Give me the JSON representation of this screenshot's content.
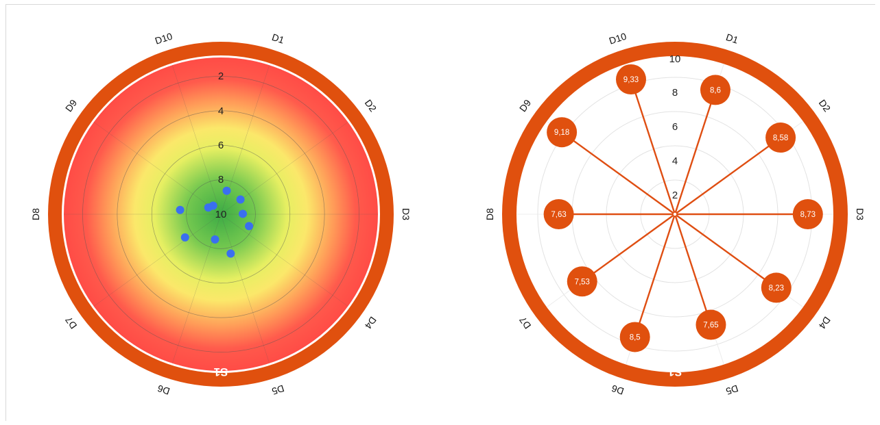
{
  "colors": {
    "ring": "#e0500e",
    "dot": "#3a6ff0",
    "spoke": "#df4e12",
    "heat_center": "#4cb848",
    "heat_mid": "#f4f36a",
    "heat_edge": "#ff4a45",
    "grid": "#555555"
  },
  "chart_data": [
    {
      "type": "scatter",
      "subtype": "polar-target",
      "ring_label": "S1",
      "axes": [
        "D10",
        "D1",
        "D2",
        "D3",
        "D4",
        "D5",
        "D6",
        "D7",
        "D8",
        "D9"
      ],
      "r_ticks": [
        "2",
        "4",
        "6",
        "8",
        "10"
      ],
      "r_range": [
        10,
        0
      ],
      "grid": true,
      "background": "radial heatmap green center to red edge",
      "points": [
        {
          "value": 8.6,
          "angle_deg": 14
        },
        {
          "value": 8.58,
          "angle_deg": 53
        },
        {
          "value": 8.73,
          "angle_deg": 89
        },
        {
          "value": 8.23,
          "angle_deg": 113
        },
        {
          "value": 7.65,
          "angle_deg": 166
        },
        {
          "value": 8.5,
          "angle_deg": 193
        },
        {
          "value": 7.53,
          "angle_deg": 237
        },
        {
          "value": 7.63,
          "angle_deg": 276
        },
        {
          "value": 9.18,
          "angle_deg": 298
        },
        {
          "value": 9.33,
          "angle_deg": 318
        }
      ]
    },
    {
      "type": "radar",
      "subtype": "polar-lollipop",
      "ring_label": "S1",
      "axes": [
        "D10",
        "D1",
        "D2",
        "D3",
        "D4",
        "D5",
        "D6",
        "D7",
        "D8",
        "D9"
      ],
      "r_ticks": [
        "2",
        "4",
        "6",
        "8",
        "10"
      ],
      "r_range": [
        0,
        10
      ],
      "grid": true,
      "series": [
        {
          "values": [
            9.33,
            8.6,
            8.58,
            8.73,
            8.23,
            7.65,
            8.5,
            7.53,
            7.63,
            9.18
          ],
          "labels": [
            "9,33",
            "8,6",
            "8,58",
            "8,73",
            "8,23",
            "7,65",
            "8,5",
            "7,53",
            "7,63",
            "9,18"
          ]
        }
      ]
    }
  ]
}
